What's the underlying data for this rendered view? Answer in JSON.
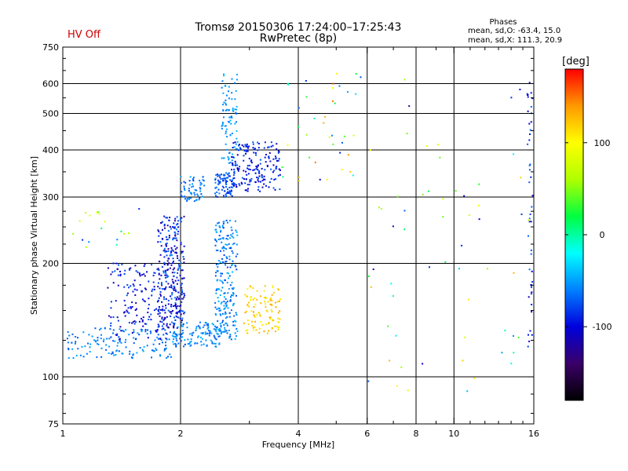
{
  "header": {
    "title_line1": "Tromsø 20150306 17:24:00–17:25:43",
    "title_line2": "RwPretec (8p)",
    "status": "HV Off",
    "status_color": "#cc0000",
    "phases_heading": "Phases",
    "phases_o": "mean, sd,O: -63.4, 15.0",
    "phases_x": "mean, sd,X: 111.3, 20.9"
  },
  "chart_data": {
    "type": "scatter",
    "xlabel": "Frequency [MHz]",
    "ylabel": "Stationary phase Virtual Height [km]",
    "xscale": "log",
    "yscale": "log",
    "xlim": [
      1,
      16
    ],
    "ylim": [
      75,
      750
    ],
    "x_ticks": [
      1,
      2,
      4,
      6,
      8,
      10,
      16
    ],
    "x_minor_ticks": [
      3,
      5,
      7,
      9,
      11,
      12,
      13,
      14,
      15
    ],
    "y_ticks": [
      75,
      100,
      200,
      300,
      400,
      500,
      600,
      750
    ],
    "y_minor_ticks": [
      80,
      90,
      125,
      150,
      175,
      225,
      250,
      275,
      350,
      450,
      550,
      650,
      700
    ],
    "grid": true,
    "colorbar": {
      "label": "[deg]",
      "range": [
        -180,
        180
      ],
      "ticks": [
        100,
        0,
        -100
      ],
      "colors": [
        "#000000",
        "#3a0068",
        "#0000dd",
        "#0080ff",
        "#00ffff",
        "#00ff40",
        "#b0ff00",
        "#ffff00",
        "#ff9900",
        "#ff0000"
      ]
    },
    "clusters": [
      {
        "name": "o-trace-low",
        "x": [
          1.02,
          1.9
        ],
        "y": [
          112,
          135
        ],
        "phase": [
          -75,
          -45
        ],
        "count": 140
      },
      {
        "name": "o-trace-spread",
        "x": [
          1.3,
          2.0
        ],
        "y": [
          125,
          200
        ],
        "phase": [
          -120,
          -70
        ],
        "count": 200
      },
      {
        "name": "o-trace-rise",
        "x": [
          1.75,
          2.05
        ],
        "y": [
          135,
          270
        ],
        "phase": [
          -130,
          -60
        ],
        "count": 260
      },
      {
        "name": "o-trace-low2",
        "x": [
          1.9,
          2.55
        ],
        "y": [
          120,
          140
        ],
        "phase": [
          -75,
          -40
        ],
        "count": 130
      },
      {
        "name": "o-trace-col2",
        "x": [
          2.45,
          2.8
        ],
        "y": [
          125,
          260
        ],
        "phase": [
          -80,
          -40
        ],
        "count": 220
      },
      {
        "name": "o-cusp-1",
        "x": [
          2.0,
          2.3
        ],
        "y": [
          290,
          340
        ],
        "phase": [
          -80,
          -45
        ],
        "count": 60
      },
      {
        "name": "o-cusp-2",
        "x": [
          2.45,
          2.75
        ],
        "y": [
          300,
          350
        ],
        "phase": [
          -90,
          -60
        ],
        "count": 90
      },
      {
        "name": "f2-spike",
        "x": [
          2.55,
          2.8
        ],
        "y": [
          360,
          640
        ],
        "phase": [
          -65,
          -40
        ],
        "count": 90
      },
      {
        "name": "f2-cluster",
        "x": [
          2.7,
          3.6
        ],
        "y": [
          310,
          420
        ],
        "phase": [
          -115,
          -70
        ],
        "count": 180
      },
      {
        "name": "x-trace",
        "x": [
          2.9,
          3.6
        ],
        "y": [
          130,
          175
        ],
        "phase": [
          100,
          135
        ],
        "count": 110
      },
      {
        "name": "high-scatter",
        "x": [
          3.6,
          5.8
        ],
        "y": [
          330,
          640
        ],
        "phase": [
          -110,
          160
        ],
        "count": 40
      },
      {
        "name": "sparse-upper",
        "x": [
          6.0,
          16
        ],
        "y": [
          90,
          620
        ],
        "phase": [
          -130,
          130
        ],
        "count": 60
      },
      {
        "name": "right-edge",
        "x": [
          15.4,
          15.9
        ],
        "y": [
          120,
          620
        ],
        "phase": [
          -120,
          -60
        ],
        "count": 45
      },
      {
        "name": "low-left",
        "x": [
          1.05,
          1.6
        ],
        "y": [
          220,
          280
        ],
        "phase": [
          -90,
          100
        ],
        "count": 18
      }
    ]
  }
}
